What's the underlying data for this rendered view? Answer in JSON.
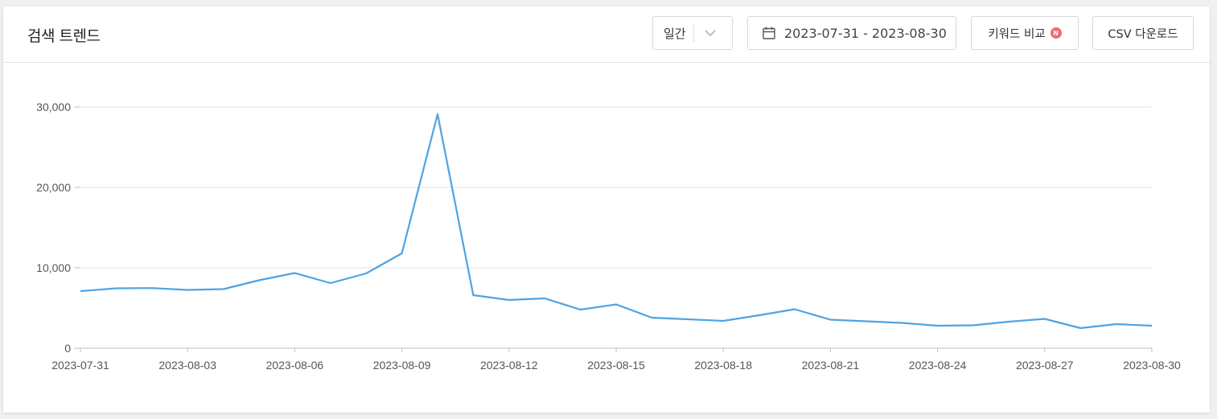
{
  "header": {
    "title": "검색 트렌드",
    "period_label": "일간",
    "date_range": "2023-07-31 - 2023-08-30",
    "compare_label": "키워드 비교",
    "compare_badge": "N",
    "csv_label": "CSV 다운로드"
  },
  "colors": {
    "line": "#4fa3e3",
    "badge": "#f06b6b",
    "grid": "#e4e4e4"
  },
  "chart_data": {
    "type": "line",
    "title": "",
    "xlabel": "",
    "ylabel": "",
    "ylim": [
      0,
      30000
    ],
    "yticks": [
      0,
      10000,
      20000,
      30000
    ],
    "ytick_labels": [
      "0",
      "10,000",
      "20,000",
      "30,000"
    ],
    "xtick_labels": [
      "2023-07-31",
      "2023-08-03",
      "2023-08-06",
      "2023-08-09",
      "2023-08-12",
      "2023-08-15",
      "2023-08-18",
      "2023-08-21",
      "2023-08-24",
      "2023-08-27",
      "2023-08-30"
    ],
    "grid": true,
    "x": [
      "2023-07-31",
      "2023-08-01",
      "2023-08-02",
      "2023-08-03",
      "2023-08-04",
      "2023-08-05",
      "2023-08-06",
      "2023-08-07",
      "2023-08-08",
      "2023-08-09",
      "2023-08-10",
      "2023-08-11",
      "2023-08-12",
      "2023-08-13",
      "2023-08-14",
      "2023-08-15",
      "2023-08-16",
      "2023-08-17",
      "2023-08-18",
      "2023-08-19",
      "2023-08-20",
      "2023-08-21",
      "2023-08-22",
      "2023-08-23",
      "2023-08-24",
      "2023-08-25",
      "2023-08-26",
      "2023-08-27",
      "2023-08-28",
      "2023-08-29",
      "2023-08-30"
    ],
    "series": [
      {
        "values": [
          7100,
          7450,
          7480,
          7250,
          7350,
          8450,
          9350,
          8100,
          9300,
          11800,
          29100,
          6600,
          6000,
          6200,
          4800,
          5450,
          3800,
          3600,
          3400,
          4100,
          4850,
          3550,
          3350,
          3150,
          2800,
          2850,
          3300,
          3650,
          2500,
          3000,
          2800
        ]
      }
    ]
  }
}
